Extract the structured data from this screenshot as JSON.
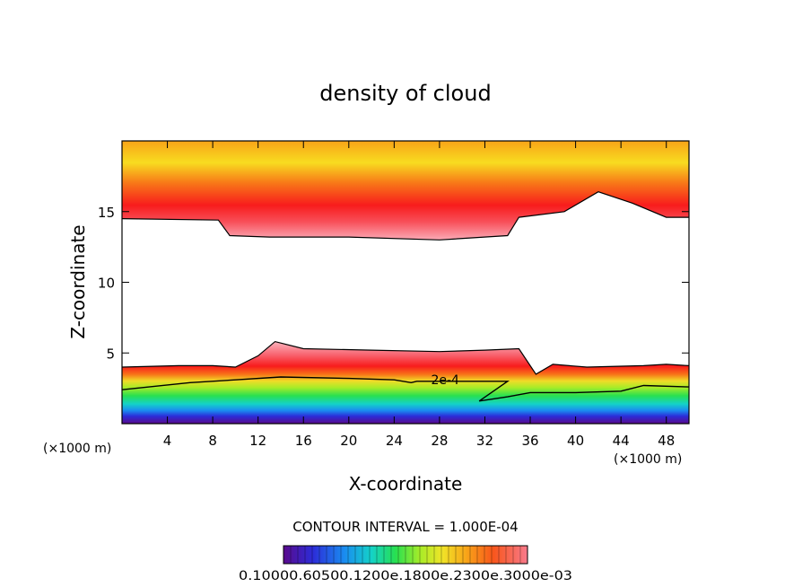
{
  "chart_data": {
    "type": "heatmap",
    "title": "density of cloud",
    "xlabel": "X-coordinate",
    "ylabel": "Z-coordinate",
    "x_unit": "(×1000 m)",
    "x_unit_right": "(×1000 m)",
    "xlim": [
      0,
      50
    ],
    "ylim": [
      0,
      20
    ],
    "x_ticks": [
      "4",
      "8",
      "12",
      "16",
      "20",
      "24",
      "28",
      "32",
      "36",
      "40",
      "44",
      "48"
    ],
    "x_tick_values": [
      4,
      8,
      12,
      16,
      20,
      24,
      28,
      32,
      36,
      40,
      44,
      48
    ],
    "y_ticks": [
      "5",
      "10",
      "15"
    ],
    "y_tick_values": [
      5,
      10,
      15
    ],
    "contour_label": "2e-4",
    "contour_interval_text": "CONTOUR INTERVAL = 1.000E-04",
    "colorbar_labels_text": "0.10000.60500.1200e.1800e.2300e.3000e-03",
    "upper_cloud_base": [
      [
        0,
        14.5
      ],
      [
        8.5,
        14.4
      ],
      [
        9.5,
        13.3
      ],
      [
        13,
        13.2
      ],
      [
        20,
        13.2
      ],
      [
        28,
        13.0
      ],
      [
        34,
        13.3
      ],
      [
        35,
        14.6
      ],
      [
        39,
        15.0
      ],
      [
        42,
        16.4
      ],
      [
        45,
        15.6
      ],
      [
        48,
        14.6
      ],
      [
        50,
        14.6
      ]
    ],
    "lower_cloud_top": [
      [
        0,
        4.0
      ],
      [
        5,
        4.1
      ],
      [
        8,
        4.1
      ],
      [
        10,
        4.0
      ],
      [
        12,
        4.8
      ],
      [
        13.5,
        5.8
      ],
      [
        16,
        5.3
      ],
      [
        22,
        5.2
      ],
      [
        28,
        5.1
      ],
      [
        32,
        5.2
      ],
      [
        35,
        5.3
      ],
      [
        36.5,
        3.5
      ],
      [
        38,
        4.2
      ],
      [
        41,
        4.0
      ],
      [
        46,
        4.1
      ],
      [
        48,
        4.2
      ],
      [
        50,
        4.1
      ]
    ],
    "contour_2e4": [
      [
        0,
        2.4
      ],
      [
        6,
        2.9
      ],
      [
        10,
        3.1
      ],
      [
        14,
        3.3
      ],
      [
        20,
        3.2
      ],
      [
        24,
        3.1
      ],
      [
        25.5,
        2.9
      ],
      [
        26,
        3.0
      ],
      [
        34,
        3.0
      ],
      [
        31.5,
        1.6
      ],
      [
        34,
        1.9
      ],
      [
        36,
        2.2
      ],
      [
        40,
        2.2
      ],
      [
        44,
        2.3
      ],
      [
        46,
        2.7
      ],
      [
        50,
        2.6
      ]
    ]
  },
  "colors": {
    "background": "#ffffff",
    "palette": [
      "#5a0a8c",
      "#2c2cd8",
      "#1a8cf0",
      "#14d2c8",
      "#28e050",
      "#a8ec28",
      "#f0e428",
      "#f8a418",
      "#f8561c",
      "#f81c1c",
      "#f8646e",
      "#fab4be"
    ]
  }
}
